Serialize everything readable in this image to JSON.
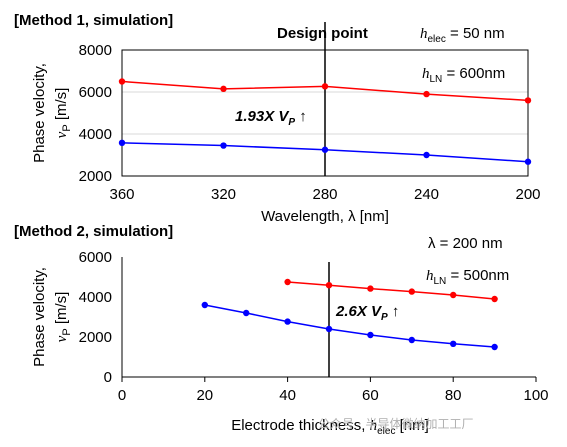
{
  "chart_data": [
    {
      "type": "line",
      "title": "[Method 1, simulation]",
      "xlabel": "Wavelength, λ [nm]",
      "ylabel_line1": "Phase velocity,",
      "ylabel_symbol": "v",
      "ylabel_sub": "P",
      "ylabel_unit": " [m/s]",
      "x_ticks": [
        "360",
        "320",
        "280",
        "240",
        "200"
      ],
      "y_ticks": [
        "2000",
        "4000",
        "6000",
        "8000"
      ],
      "xlim": [
        360,
        200
      ],
      "ylim": [
        2000,
        8000
      ],
      "x": [
        360,
        320,
        280,
        240,
        200
      ],
      "series": [
        {
          "color": "#ff0000",
          "values": [
            6500,
            6150,
            6270,
            5900,
            5600
          ]
        },
        {
          "color": "#0000ff",
          "values": [
            3580,
            3450,
            3250,
            3000,
            2680
          ]
        }
      ],
      "design_line_x": 280,
      "design_label": "Design point",
      "helec_sym": "h",
      "helec_sub": "elec",
      "helec_val": " = 50 nm",
      "hln_sym": "h",
      "hln_sub": "LN",
      "hln_val": " = 600nm",
      "ratio_prefix": "1.93X V",
      "ratio_sub": "P",
      "ratio_arrow": " ↑"
    },
    {
      "type": "line",
      "title": "[Method 2, simulation]",
      "xlabel_prefix": "Electrode thickness, ",
      "xlabel_sym": "h",
      "xlabel_sub": "elec",
      "xlabel_unit": " [nm]",
      "ylabel_line1": "Phase velocity,",
      "ylabel_symbol": "v",
      "ylabel_sub": "P",
      "ylabel_unit": " [m/s]",
      "x_ticks": [
        "0",
        "20",
        "40",
        "60",
        "80",
        "100"
      ],
      "y_ticks": [
        "0",
        "2000",
        "4000",
        "6000"
      ],
      "xlim": [
        0,
        100
      ],
      "ylim": [
        0,
        6000
      ],
      "series": [
        {
          "color": "#ff0000",
          "x": [
            40,
            50,
            60,
            70,
            80,
            90
          ],
          "values": [
            4750,
            4590,
            4420,
            4270,
            4100,
            3900
          ]
        },
        {
          "color": "#0000ff",
          "x": [
            20,
            30,
            40,
            50,
            60,
            70,
            80,
            90
          ],
          "values": [
            3600,
            3200,
            2770,
            2400,
            2100,
            1850,
            1660,
            1500
          ]
        }
      ],
      "design_line_x": 50,
      "lambda_label": "λ = 200 nm",
      "hln_sym": "h",
      "hln_sub": "LN",
      "hln_val": " = 500nm",
      "ratio_prefix": "2.6X V",
      "ratio_sub": "P",
      "ratio_arrow": " ↑"
    }
  ],
  "watermark": "公众号 · 半导体微纳加工工厂"
}
